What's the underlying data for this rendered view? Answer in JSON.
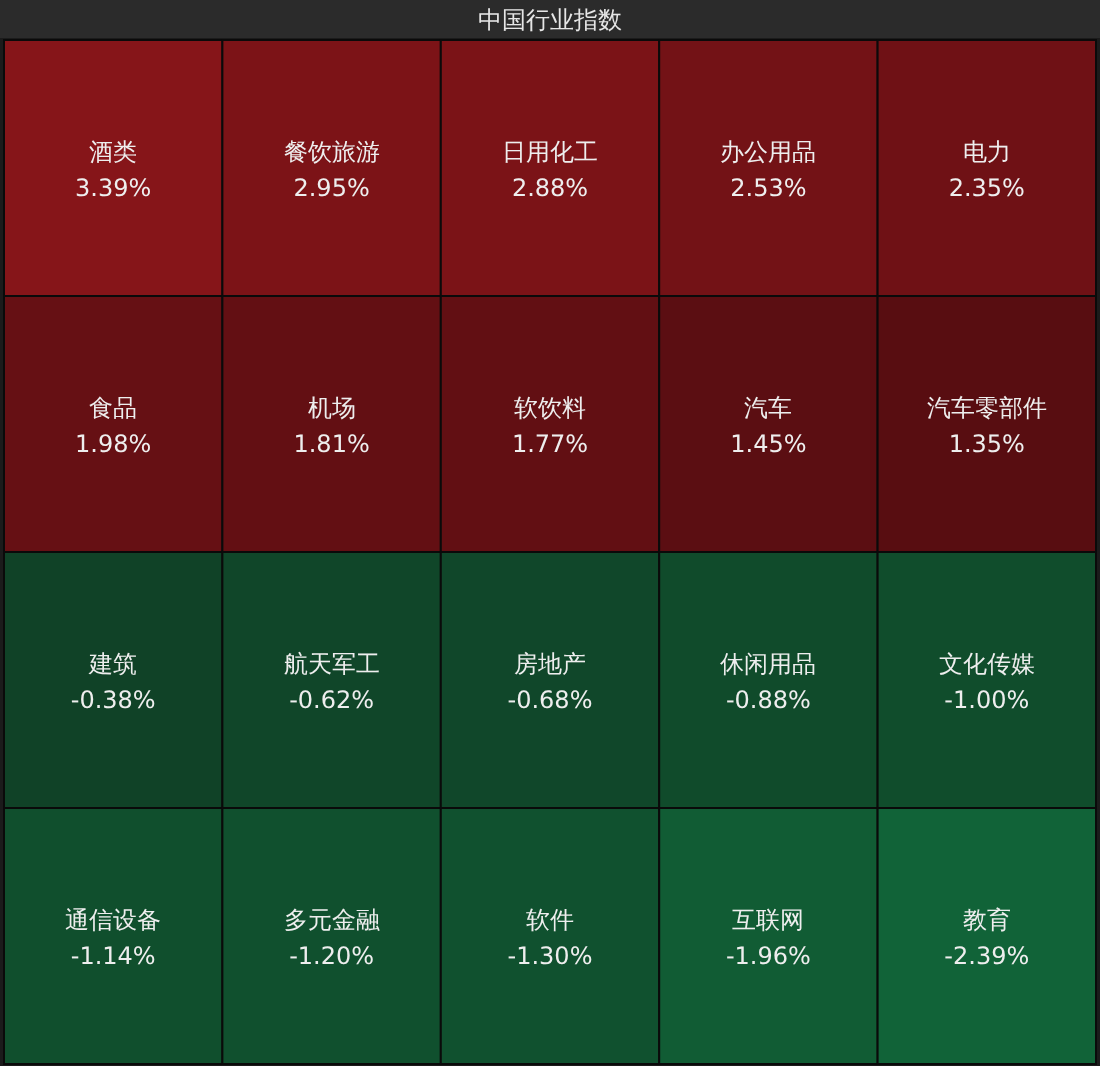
{
  "chart_data": {
    "type": "other",
    "title": "中国行业指数",
    "categories": [
      "酒类",
      "餐饮旅游",
      "日用化工",
      "办公用品",
      "电力",
      "食品",
      "机场",
      "软饮料",
      "汽车",
      "汽车零部件",
      "建筑",
      "航天军工",
      "房地产",
      "休闲用品",
      "文化传媒",
      "通信设备",
      "多元金融",
      "软件",
      "互联网",
      "教育"
    ],
    "values": [
      3.39,
      2.95,
      2.88,
      2.53,
      2.35,
      1.98,
      1.81,
      1.77,
      1.45,
      1.35,
      -0.38,
      -0.62,
      -0.68,
      -0.88,
      -1.0,
      -1.14,
      -1.2,
      -1.3,
      -1.96,
      -2.39
    ],
    "value_labels": [
      "3.39%",
      "2.95%",
      "2.88%",
      "2.53%",
      "2.35%",
      "1.98%",
      "1.81%",
      "1.77%",
      "1.45%",
      "1.35%",
      "-0.38%",
      "-0.62%",
      "-0.68%",
      "-0.88%",
      "-1.00%",
      "-1.14%",
      "-1.20%",
      "-1.30%",
      "-1.96%",
      "-2.39%"
    ]
  }
}
